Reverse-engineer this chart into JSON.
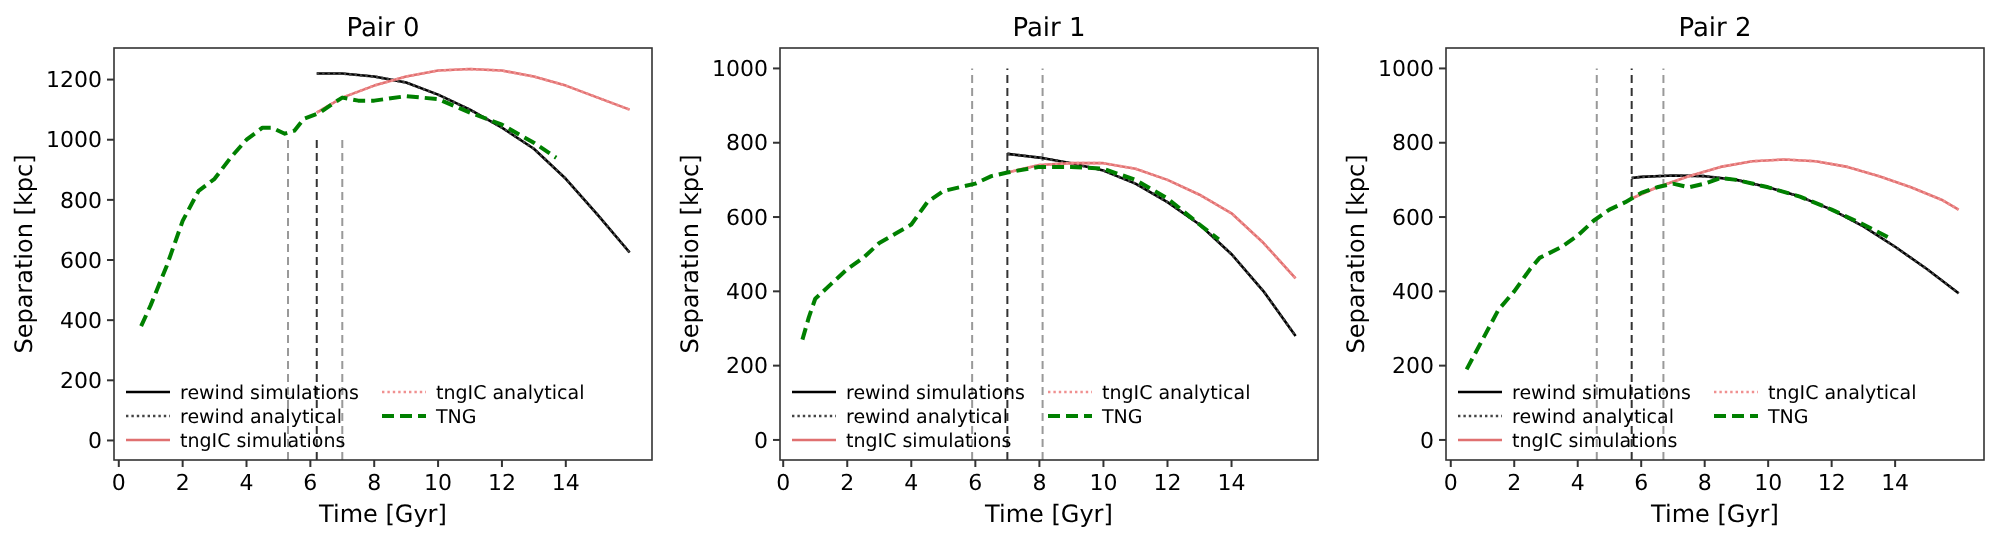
{
  "chart_data": [
    {
      "type": "line",
      "title": "Pair 0",
      "xlabel": "Time [Gyr]",
      "ylabel": "Separation [kpc]",
      "xlim": [
        -0.15,
        16.7
      ],
      "ylim": [
        -65,
        1305
      ],
      "xticks": [
        0,
        2,
        4,
        6,
        8,
        10,
        12,
        14
      ],
      "yticks": [
        0,
        200,
        400,
        600,
        800,
        1000,
        1200
      ],
      "legend": "bottom left",
      "grid": false,
      "series": [
        {
          "color": "#999999",
          "line_style": "dashed",
          "x": [
            5.3,
            5.3
          ],
          "values": [
            -65,
            1000
          ]
        },
        {
          "color": "#333333",
          "line_style": "dashed",
          "x": [
            6.2,
            6.2
          ],
          "values": [
            -65,
            1000
          ]
        },
        {
          "color": "#999999",
          "line_style": "dashed",
          "x": [
            7.0,
            7.0
          ],
          "values": [
            -65,
            1000
          ]
        },
        {
          "name": "rewind simulations",
          "color": "#000000",
          "line_style": "solid",
          "x": [
            6.2,
            7,
            8,
            9,
            10,
            11,
            12,
            13,
            14,
            15,
            16
          ],
          "values": [
            1220,
            1220,
            1210,
            1190,
            1150,
            1100,
            1040,
            970,
            870,
            750,
            625
          ]
        },
        {
          "name": "rewind analytical",
          "color": "#444444",
          "line_style": "dotted",
          "x": [
            6.2,
            7,
            8,
            9,
            10,
            11,
            12,
            13,
            14,
            15,
            16
          ],
          "values": [
            1220,
            1220,
            1210,
            1190,
            1150,
            1100,
            1040,
            970,
            870,
            750,
            625
          ]
        },
        {
          "name": "tngIC simulations",
          "color": "#e07070",
          "line_style": "solid",
          "x": [
            6.2,
            7,
            8,
            9,
            10,
            11,
            12,
            13,
            14,
            15,
            16
          ],
          "values": [
            1090,
            1140,
            1180,
            1210,
            1230,
            1235,
            1230,
            1210,
            1180,
            1140,
            1100
          ]
        },
        {
          "name": "tngIC analytical",
          "color": "#f09090",
          "line_style": "dotted",
          "x": [
            6.2,
            7,
            8,
            9,
            10,
            11,
            12,
            13,
            14,
            15,
            16
          ],
          "values": [
            1090,
            1140,
            1180,
            1210,
            1230,
            1235,
            1230,
            1210,
            1180,
            1140,
            1100
          ]
        },
        {
          "name": "TNG",
          "color": "#008000",
          "line_style": "dashed",
          "x": [
            0.7,
            1,
            1.5,
            2,
            2.5,
            3,
            3.5,
            4,
            4.5,
            4.8,
            5.2,
            5.5,
            5.8,
            6.3,
            6.7,
            7,
            7.5,
            8,
            9,
            10,
            11,
            12,
            13,
            13.7
          ],
          "values": [
            380,
            450,
            580,
            730,
            830,
            870,
            940,
            1000,
            1040,
            1040,
            1020,
            1030,
            1070,
            1090,
            1120,
            1140,
            1130,
            1130,
            1145,
            1135,
            1090,
            1050,
            990,
            940
          ]
        }
      ]
    },
    {
      "type": "line",
      "title": "Pair 1",
      "xlabel": "Time [Gyr]",
      "ylabel": "Separation [kpc]",
      "xlim": [
        -0.1,
        16.7
      ],
      "ylim": [
        -54,
        1055
      ],
      "xticks": [
        0,
        2,
        4,
        6,
        8,
        10,
        12,
        14
      ],
      "yticks": [
        0,
        200,
        400,
        600,
        800,
        1000
      ],
      "legend": "bottom left",
      "grid": false,
      "series": [
        {
          "color": "#999999",
          "line_style": "dashed",
          "x": [
            5.9,
            5.9
          ],
          "values": [
            -54,
            1000
          ]
        },
        {
          "color": "#333333",
          "line_style": "dashed",
          "x": [
            7.0,
            7.0
          ],
          "values": [
            -54,
            1000
          ]
        },
        {
          "color": "#999999",
          "line_style": "dashed",
          "x": [
            8.1,
            8.1
          ],
          "values": [
            -54,
            1000
          ]
        },
        {
          "name": "rewind simulations",
          "color": "#000000",
          "line_style": "solid",
          "x": [
            7,
            8,
            9,
            10,
            11,
            12,
            13,
            14,
            15,
            16
          ],
          "values": [
            770,
            760,
            745,
            725,
            690,
            640,
            580,
            500,
            400,
            280
          ]
        },
        {
          "name": "rewind analytical",
          "color": "#444444",
          "line_style": "dotted",
          "x": [
            7,
            8,
            9,
            10,
            11,
            12,
            13,
            14,
            15,
            16
          ],
          "values": [
            770,
            760,
            745,
            725,
            690,
            640,
            580,
            500,
            400,
            280
          ]
        },
        {
          "name": "tngIC simulations",
          "color": "#e07070",
          "line_style": "solid",
          "x": [
            7,
            8,
            9,
            10,
            11,
            12,
            13,
            14,
            15,
            16
          ],
          "values": [
            720,
            740,
            745,
            745,
            730,
            700,
            660,
            610,
            530,
            435
          ]
        },
        {
          "name": "tngIC analytical",
          "color": "#f09090",
          "line_style": "dotted",
          "x": [
            7,
            8,
            9,
            10,
            11,
            12,
            13,
            14,
            15,
            16
          ],
          "values": [
            720,
            740,
            745,
            745,
            730,
            700,
            660,
            610,
            530,
            435
          ]
        },
        {
          "name": "TNG",
          "color": "#008000",
          "line_style": "dashed",
          "x": [
            0.6,
            0.8,
            1,
            1.5,
            2,
            2.5,
            3,
            3.5,
            4,
            4.5,
            5,
            5.5,
            6,
            6.5,
            7,
            8,
            9,
            10,
            11,
            12,
            13,
            13.6
          ],
          "values": [
            270,
            330,
            380,
            420,
            460,
            490,
            530,
            555,
            580,
            640,
            670,
            680,
            690,
            710,
            720,
            735,
            735,
            730,
            700,
            650,
            580,
            540
          ]
        }
      ]
    },
    {
      "type": "line",
      "title": "Pair 2",
      "xlabel": "Time [Gyr]",
      "ylabel": "Separation [kpc]",
      "xlim": [
        -0.15,
        16.8
      ],
      "ylim": [
        -54,
        1055
      ],
      "xticks": [
        0,
        2,
        4,
        6,
        8,
        10,
        12,
        14
      ],
      "yticks": [
        0,
        200,
        400,
        600,
        800,
        1000
      ],
      "legend": "bottom left",
      "grid": false,
      "series": [
        {
          "color": "#999999",
          "line_style": "dashed",
          "x": [
            4.6,
            4.6
          ],
          "values": [
            -54,
            1000
          ]
        },
        {
          "color": "#333333",
          "line_style": "dashed",
          "x": [
            5.7,
            5.7
          ],
          "values": [
            -54,
            1000
          ]
        },
        {
          "color": "#999999",
          "line_style": "dashed",
          "x": [
            6.7,
            6.7
          ],
          "values": [
            -54,
            1000
          ]
        },
        {
          "name": "rewind simulations",
          "color": "#000000",
          "line_style": "solid",
          "x": [
            5.7,
            6,
            7,
            8,
            9,
            10,
            11,
            12,
            13,
            14,
            15,
            16
          ],
          "values": [
            705,
            708,
            712,
            710,
            700,
            680,
            655,
            620,
            575,
            520,
            460,
            395
          ]
        },
        {
          "name": "rewind analytical",
          "color": "#444444",
          "line_style": "dotted",
          "x": [
            5.7,
            6,
            7,
            8,
            9,
            10,
            11,
            12,
            13,
            14,
            15,
            16
          ],
          "values": [
            705,
            708,
            712,
            710,
            700,
            680,
            655,
            620,
            575,
            520,
            460,
            395
          ]
        },
        {
          "name": "tngIC simulations",
          "color": "#e07070",
          "line_style": "solid",
          "x": [
            5.7,
            6.5,
            7.5,
            8.5,
            9.5,
            10.5,
            11.5,
            12.5,
            13.5,
            14.5,
            15.5,
            16
          ],
          "values": [
            650,
            680,
            710,
            735,
            750,
            755,
            750,
            735,
            710,
            680,
            645,
            620
          ]
        },
        {
          "name": "tngIC analytical",
          "color": "#f09090",
          "line_style": "dotted",
          "x": [
            5.7,
            6.5,
            7.5,
            8.5,
            9.5,
            10.5,
            11.5,
            12.5,
            13.5,
            14.5,
            15.5,
            16
          ],
          "values": [
            650,
            680,
            710,
            735,
            750,
            755,
            750,
            735,
            710,
            680,
            645,
            620
          ]
        },
        {
          "name": "TNG",
          "color": "#008000",
          "line_style": "dashed",
          "x": [
            0.5,
            1,
            1.5,
            2,
            2.5,
            2.8,
            3.5,
            4,
            4.5,
            5,
            5.5,
            6,
            6.5,
            7,
            7.5,
            8,
            8.5,
            9,
            10,
            11,
            12,
            13,
            13.8
          ],
          "values": [
            190,
            270,
            350,
            400,
            460,
            490,
            520,
            550,
            590,
            620,
            640,
            665,
            680,
            690,
            680,
            690,
            705,
            700,
            680,
            655,
            620,
            580,
            545
          ]
        }
      ]
    }
  ]
}
